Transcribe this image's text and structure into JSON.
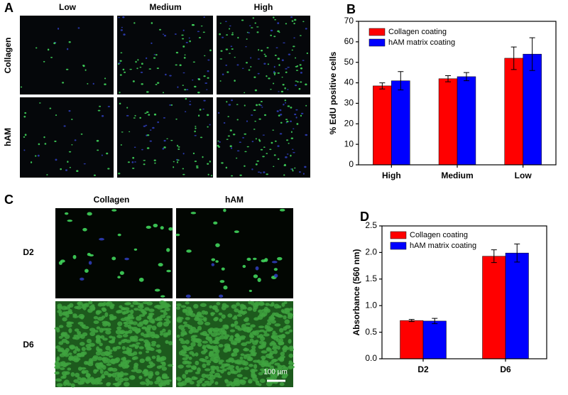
{
  "panels": {
    "A": {
      "label": "A",
      "columns": [
        "Low",
        "Medium",
        "High"
      ],
      "rows": [
        "Collagen",
        "hAM"
      ]
    },
    "C": {
      "label": "C",
      "columns": [
        "Collagen",
        "hAM"
      ],
      "rows": [
        "D2",
        "D6"
      ],
      "scale_bar": "100 µm"
    }
  },
  "chart_data": [
    {
      "type": "bar",
      "label": "B",
      "ylabel": "% EdU positive cells",
      "categories": [
        "High",
        "Medium",
        "Low"
      ],
      "series": [
        {
          "name": "Collagen coating",
          "color": "#ff0000",
          "values": [
            38.5,
            42,
            52
          ],
          "errors": [
            1.5,
            1.5,
            5.5
          ]
        },
        {
          "name": "hAM matrix coating",
          "color": "#0000ff",
          "values": [
            41,
            43,
            54
          ],
          "errors": [
            4.5,
            2,
            8
          ]
        }
      ],
      "ylim": [
        0,
        70
      ],
      "yticks": [
        0,
        10,
        20,
        30,
        40,
        50,
        60,
        70
      ],
      "legend": "upper-left"
    },
    {
      "type": "bar",
      "label": "D",
      "ylabel": "Absorbance (560 nm)",
      "categories": [
        "D2",
        "D6"
      ],
      "series": [
        {
          "name": "Collagen coating",
          "color": "#ff0000",
          "values": [
            0.72,
            1.93
          ],
          "errors": [
            0.02,
            0.12
          ]
        },
        {
          "name": "hAM matrix coating",
          "color": "#0000ff",
          "values": [
            0.71,
            1.99
          ],
          "errors": [
            0.05,
            0.17
          ]
        }
      ],
      "ylim": [
        0,
        2.5
      ],
      "yticks": [
        {
          "value": 0,
          "label": "0.0"
        },
        0.5,
        {
          "value": 1,
          "label": "1.0"
        },
        1.5,
        {
          "value": 2,
          "label": "2.0"
        },
        2.5
      ],
      "legend": "upper-left"
    }
  ]
}
